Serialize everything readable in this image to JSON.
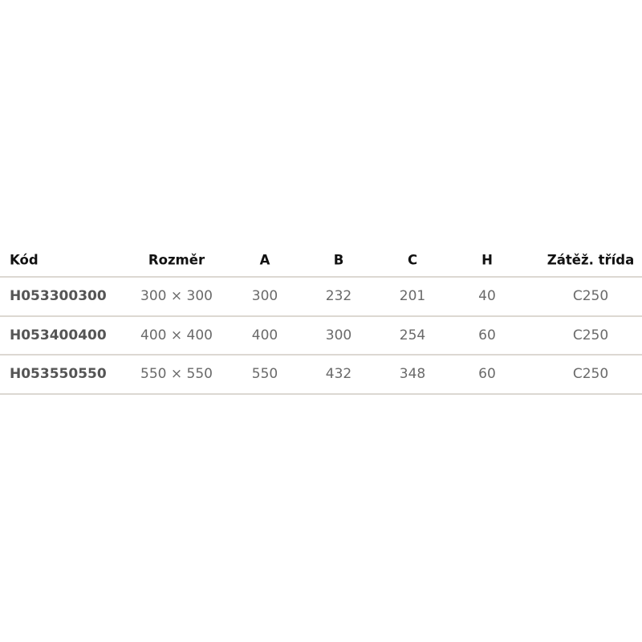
{
  "table": {
    "headers": [
      "Kód",
      "Rozměr",
      "A",
      "B",
      "C",
      "H",
      "Zátěž. třída"
    ],
    "rows": [
      [
        "H053300300",
        "300 × 300",
        "300",
        "232",
        "201",
        "40",
        "C250"
      ],
      [
        "H053400400",
        "400 × 400",
        "400",
        "300",
        "254",
        "60",
        "C250"
      ],
      [
        "H053550550",
        "550 × 550",
        "550",
        "432",
        "348",
        "60",
        "C250"
      ]
    ]
  }
}
